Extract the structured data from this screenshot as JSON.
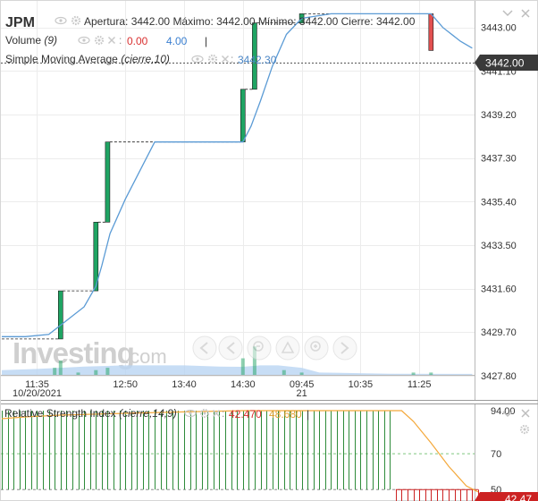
{
  "header": {
    "ticker": "JPM",
    "ohlc": [
      {
        "label": "Apertura:",
        "value": "3442.00"
      },
      {
        "label": "Máximo:",
        "value": "3442.00"
      },
      {
        "label": "Mínimo:",
        "value": "3442.00"
      },
      {
        "label": "Cierre:",
        "value": "3442.00"
      }
    ],
    "volume_label": "Volume",
    "volume_param": "(9)",
    "volume_value_red": "0.00",
    "volume_value_blue": "4.00",
    "sma_label": "Simple Moving Average",
    "sma_param": "(cierre,10)",
    "sma_value": "3442.30"
  },
  "watermark": {
    "brand": "Investing",
    "suffix": ".com"
  },
  "current_price_tag": "3442.00",
  "colors": {
    "bull": "#1fa463",
    "bear": "#e25050",
    "sma": "#5b9bd5",
    "volume_area": "#b9d5f3",
    "rsi_line": "#f4a83a",
    "rsi_bar_green": "#2e8b3a",
    "rsi_bar_red": "#cc2222",
    "rsi_value_red": "#d93030",
    "rsi_value_orange": "#e0a030"
  },
  "chart_data": [
    {
      "type": "candlestick",
      "title": "JPM",
      "y_ticks": [
        "3443.00",
        "3441.10",
        "3439.20",
        "3437.30",
        "3435.40",
        "3433.50",
        "3431.60",
        "3429.70",
        "3427.80"
      ],
      "y_tick_values": [
        3443.0,
        3441.1,
        3439.2,
        3437.3,
        3435.4,
        3433.5,
        3431.6,
        3429.7,
        3427.8
      ],
      "ylim": [
        3426.7,
        3444.2
      ],
      "x_ticks": [
        {
          "t": 0,
          "label": "11:35",
          "sub": "10/20/2021"
        },
        {
          "t": 75,
          "label": "12:50",
          "sub": ""
        },
        {
          "t": 125,
          "label": "13:40",
          "sub": ""
        },
        {
          "t": 175,
          "label": "14:30",
          "sub": ""
        },
        {
          "t": 225,
          "label": "09:45",
          "sub": "21"
        },
        {
          "t": 275,
          "label": "10:35",
          "sub": ""
        },
        {
          "t": 325,
          "label": "11:25",
          "sub": ""
        }
      ],
      "candles": [
        {
          "t": 20,
          "open": 3429.4,
          "close": 3431.5,
          "high": 3431.5,
          "low": 3429.4
        },
        {
          "t": 50,
          "open": 3431.5,
          "close": 3434.5,
          "high": 3434.5,
          "low": 3431.5
        },
        {
          "t": 60,
          "open": 3434.5,
          "close": 3438.0,
          "high": 3438.0,
          "low": 3434.5
        },
        {
          "t": 175,
          "open": 3438.0,
          "close": 3440.3,
          "high": 3440.3,
          "low": 3438.0
        },
        {
          "t": 185,
          "open": 3440.3,
          "close": 3443.2,
          "high": 3443.2,
          "low": 3440.3
        },
        {
          "t": 225,
          "open": 3443.2,
          "close": 3443.6,
          "high": 3443.6,
          "low": 3443.2
        },
        {
          "t": 335,
          "open": 3443.6,
          "close": 3442.0,
          "high": 3443.6,
          "low": 3442.0
        }
      ],
      "sma": {
        "label": "Simple Moving Average (cierre,10)",
        "points": [
          [
            -30,
            3429.5
          ],
          [
            -10,
            3429.5
          ],
          [
            10,
            3429.6
          ],
          [
            20,
            3430.0
          ],
          [
            40,
            3430.8
          ],
          [
            50,
            3431.7
          ],
          [
            55,
            3432.6
          ],
          [
            62,
            3434.0
          ],
          [
            75,
            3435.5
          ],
          [
            90,
            3437.0
          ],
          [
            100,
            3438.0
          ],
          [
            125,
            3438.0
          ],
          [
            155,
            3438.0
          ],
          [
            175,
            3438.0
          ],
          [
            182,
            3438.7
          ],
          [
            190,
            3439.8
          ],
          [
            200,
            3441.3
          ],
          [
            212,
            3442.7
          ],
          [
            225,
            3443.4
          ],
          [
            250,
            3443.6
          ],
          [
            275,
            3443.6
          ],
          [
            300,
            3443.6
          ],
          [
            335,
            3443.6
          ],
          [
            345,
            3443.0
          ],
          [
            360,
            3442.4
          ],
          [
            370,
            3442.1
          ]
        ]
      },
      "volume": [
        {
          "t": 15,
          "v": 3,
          "c": "bull"
        },
        {
          "t": 20,
          "v": 6,
          "c": "bull"
        },
        {
          "t": 35,
          "v": 1,
          "c": "bull"
        },
        {
          "t": 50,
          "v": 2,
          "c": "bull"
        },
        {
          "t": 60,
          "v": 3,
          "c": "bull"
        },
        {
          "t": 175,
          "v": 7,
          "c": "bull"
        },
        {
          "t": 185,
          "v": 12,
          "c": "bull"
        },
        {
          "t": 210,
          "v": 2,
          "c": "bull"
        },
        {
          "t": 225,
          "v": 1,
          "c": "bull"
        },
        {
          "t": 320,
          "v": 1,
          "c": "bull"
        },
        {
          "t": 335,
          "v": 1,
          "c": "bull"
        }
      ],
      "volume_ma": [
        [
          -30,
          2
        ],
        [
          0,
          2.5
        ],
        [
          20,
          3
        ],
        [
          40,
          3.5
        ],
        [
          60,
          3.8
        ],
        [
          75,
          4
        ],
        [
          125,
          4
        ],
        [
          155,
          3.5
        ],
        [
          175,
          3.4
        ],
        [
          190,
          4
        ],
        [
          205,
          4
        ],
        [
          225,
          3
        ],
        [
          240,
          1
        ],
        [
          300,
          0.5
        ],
        [
          370,
          0.4
        ]
      ],
      "volume_max": 14
    },
    {
      "type": "line",
      "title": "Relative Strength Index",
      "params": "(cierre,14,9)",
      "value_a": "42.470",
      "value_b": "48.680",
      "y_ticks": [
        "94.00",
        "70",
        "50"
      ],
      "y_tick_values": [
        94,
        70,
        50
      ],
      "ylim": [
        43.6,
        97.5
      ],
      "current_tag": "42.47",
      "levels": [
        70,
        50
      ],
      "line": [
        [
          -30,
          89.5
        ],
        [
          -10,
          90.5
        ],
        [
          20,
          91.5
        ],
        [
          75,
          92.5
        ],
        [
          125,
          93.3
        ],
        [
          175,
          94.0
        ],
        [
          225,
          94.0
        ],
        [
          275,
          94.0
        ],
        [
          300,
          94.0
        ],
        [
          310,
          94.0
        ],
        [
          320,
          88.0
        ],
        [
          335,
          76.0
        ],
        [
          350,
          63.0
        ],
        [
          365,
          52.0
        ],
        [
          375,
          48.7
        ]
      ],
      "bars_up": {
        "from": -30,
        "to": 300,
        "step": 5
      },
      "bars_down": {
        "from": 305,
        "to": 375,
        "step": 5
      }
    }
  ]
}
